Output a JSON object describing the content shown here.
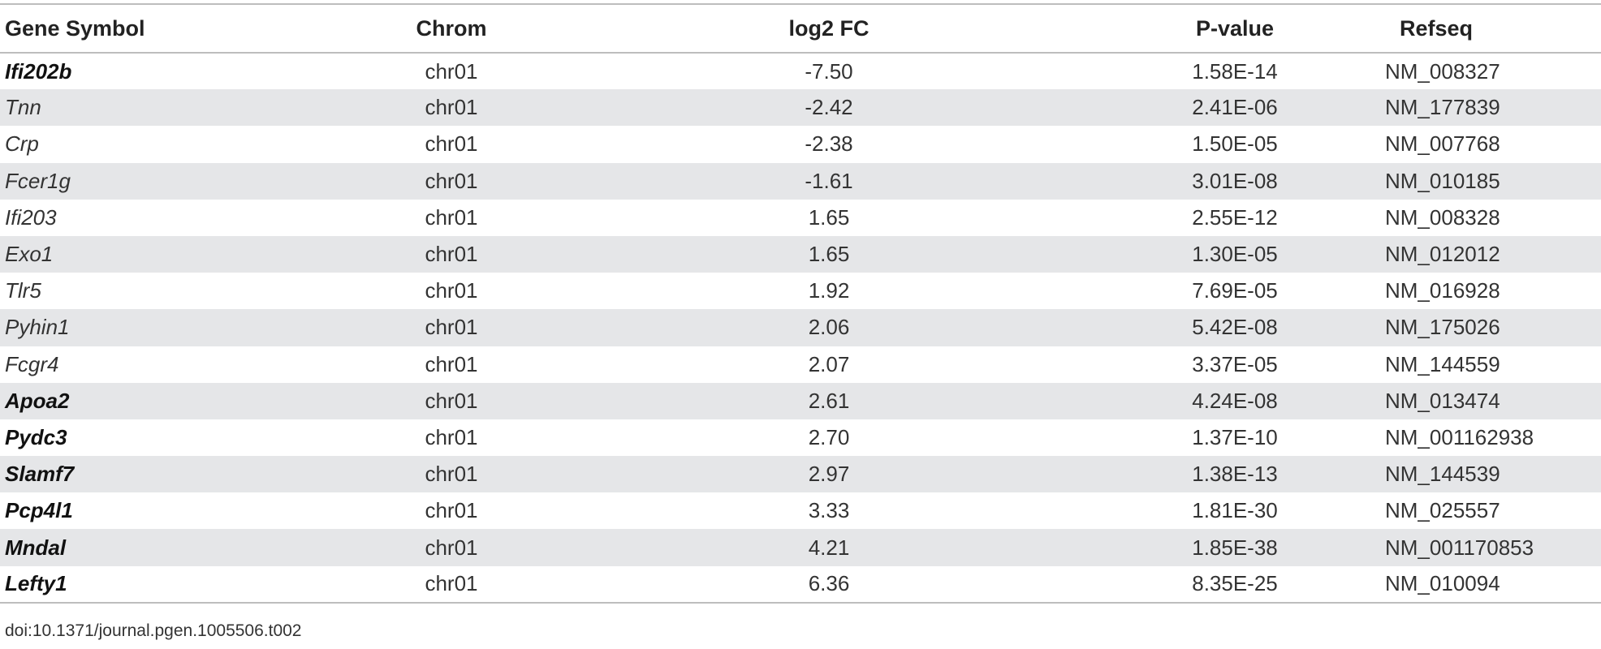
{
  "table": {
    "headers": {
      "gene": "Gene Symbol",
      "chrom": "Chrom",
      "fc": "log2 FC",
      "pvalue": "P-value",
      "refseq": "Refseq"
    },
    "rows": [
      {
        "gene": "Ifi202b",
        "bold": true,
        "chrom": "chr01",
        "fc": "-7.50",
        "pvalue": "1.58E-14",
        "refseq": "NM_008327"
      },
      {
        "gene": "Tnn",
        "bold": false,
        "chrom": "chr01",
        "fc": "-2.42",
        "pvalue": "2.41E-06",
        "refseq": "NM_177839"
      },
      {
        "gene": "Crp",
        "bold": false,
        "chrom": "chr01",
        "fc": "-2.38",
        "pvalue": "1.50E-05",
        "refseq": "NM_007768"
      },
      {
        "gene": "Fcer1g",
        "bold": false,
        "chrom": "chr01",
        "fc": "-1.61",
        "pvalue": "3.01E-08",
        "refseq": "NM_010185"
      },
      {
        "gene": "Ifi203",
        "bold": false,
        "chrom": "chr01",
        "fc": "1.65",
        "pvalue": "2.55E-12",
        "refseq": "NM_008328"
      },
      {
        "gene": "Exo1",
        "bold": false,
        "chrom": "chr01",
        "fc": "1.65",
        "pvalue": "1.30E-05",
        "refseq": "NM_012012"
      },
      {
        "gene": "Tlr5",
        "bold": false,
        "chrom": "chr01",
        "fc": "1.92",
        "pvalue": "7.69E-05",
        "refseq": "NM_016928"
      },
      {
        "gene": "Pyhin1",
        "bold": false,
        "chrom": "chr01",
        "fc": "2.06",
        "pvalue": "5.42E-08",
        "refseq": "NM_175026"
      },
      {
        "gene": "Fcgr4",
        "bold": false,
        "chrom": "chr01",
        "fc": "2.07",
        "pvalue": "3.37E-05",
        "refseq": "NM_144559"
      },
      {
        "gene": "Apoa2",
        "bold": true,
        "chrom": "chr01",
        "fc": "2.61",
        "pvalue": "4.24E-08",
        "refseq": "NM_013474"
      },
      {
        "gene": "Pydc3",
        "bold": true,
        "chrom": "chr01",
        "fc": "2.70",
        "pvalue": "1.37E-10",
        "refseq": "NM_001162938"
      },
      {
        "gene": "Slamf7",
        "bold": true,
        "chrom": "chr01",
        "fc": "2.97",
        "pvalue": "1.38E-13",
        "refseq": "NM_144539"
      },
      {
        "gene": "Pcp4l1",
        "bold": true,
        "chrom": "chr01",
        "fc": "3.33",
        "pvalue": "1.81E-30",
        "refseq": "NM_025557"
      },
      {
        "gene": "Mndal",
        "bold": true,
        "chrom": "chr01",
        "fc": "4.21",
        "pvalue": "1.85E-38",
        "refseq": "NM_001170853"
      },
      {
        "gene": "Lefty1",
        "bold": true,
        "chrom": "chr01",
        "fc": "6.36",
        "pvalue": "8.35E-25",
        "refseq": "NM_010094"
      }
    ]
  },
  "footer": {
    "doi": "doi:10.1371/journal.pgen.1005506.t002"
  }
}
